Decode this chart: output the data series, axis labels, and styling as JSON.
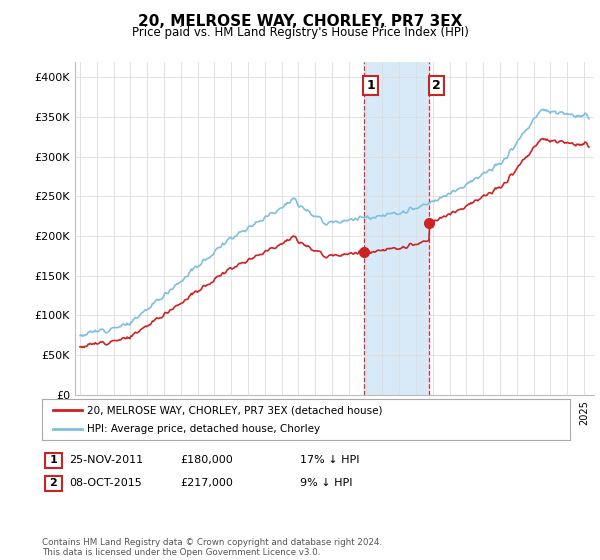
{
  "title": "20, MELROSE WAY, CHORLEY, PR7 3EX",
  "subtitle": "Price paid vs. HM Land Registry's House Price Index (HPI)",
  "ylim": [
    0,
    420000
  ],
  "yticks": [
    0,
    50000,
    100000,
    150000,
    200000,
    250000,
    300000,
    350000,
    400000
  ],
  "ytick_labels": [
    "£0",
    "£50K",
    "£100K",
    "£150K",
    "£200K",
    "£250K",
    "£300K",
    "£350K",
    "£400K"
  ],
  "hpi_color": "#7fbfdf",
  "price_color": "#cc2222",
  "highlight_color": "#d8eaf7",
  "sale1_date": 2011.9,
  "sale1_price": 180000,
  "sale1_label": "1",
  "sale2_date": 2015.8,
  "sale2_price": 217000,
  "sale2_label": "2",
  "legend_house_label": "20, MELROSE WAY, CHORLEY, PR7 3EX (detached house)",
  "legend_hpi_label": "HPI: Average price, detached house, Chorley",
  "table_row1": [
    "1",
    "25-NOV-2011",
    "£180,000",
    "17% ↓ HPI"
  ],
  "table_row2": [
    "2",
    "08-OCT-2015",
    "£217,000",
    "9% ↓ HPI"
  ],
  "footer": "Contains HM Land Registry data © Crown copyright and database right 2024.\nThis data is licensed under the Open Government Licence v3.0.",
  "background_color": "#ffffff",
  "grid_color": "#dddddd"
}
